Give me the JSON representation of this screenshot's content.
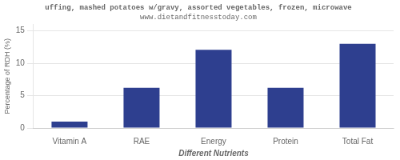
{
  "chart_data": {
    "type": "bar",
    "title": "uffing, mashed potatoes w/gravy, assorted vegetables, frozen, microwave",
    "subtitle": "www.dietandfitnesstoday.com",
    "xlabel": "Different Nutrients",
    "ylabel": "Percentage of RDH (%)",
    "categories": [
      "Vitamin A",
      "RAE",
      "Energy",
      "Protein",
      "Total Fat"
    ],
    "values": [
      1.0,
      6.2,
      12.1,
      6.2,
      13.0
    ],
    "color": "#2e3f8f",
    "ylim": [
      0,
      16
    ],
    "yticks": [
      0,
      5,
      10,
      15
    ],
    "grid": true
  }
}
